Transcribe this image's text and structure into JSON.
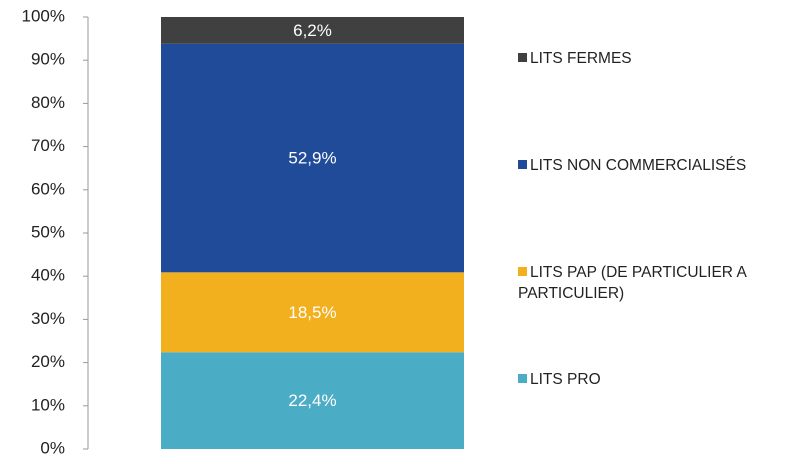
{
  "chart_data": {
    "type": "stacked_bar",
    "categories": [
      null
    ],
    "series": [
      {
        "name": "LITS PRO",
        "color": "#4bacc6",
        "values": [
          22.4
        ],
        "value_labels": [
          "22,4%"
        ]
      },
      {
        "name": "LITS PAP (DE PARTICULIER A PARTICULIER)",
        "color": "#f2b01e",
        "values": [
          18.5
        ],
        "value_labels": [
          "18,5%"
        ]
      },
      {
        "name": "LITS NON COMMERCIALISÉS",
        "color": "#1f4b99",
        "values": [
          52.9
        ],
        "value_labels": [
          "52,9%"
        ]
      },
      {
        "name": "LITS FERMES",
        "color": "#404040",
        "values": [
          6.2
        ],
        "value_labels": [
          "6,2%"
        ]
      }
    ],
    "ylim": [
      0,
      100
    ],
    "yticks": [
      {
        "value": 0,
        "label": "0%"
      },
      {
        "value": 10,
        "label": "10%"
      },
      {
        "value": 20,
        "label": "20%"
      },
      {
        "value": 30,
        "label": "30%"
      },
      {
        "value": 40,
        "label": "40%"
      },
      {
        "value": 50,
        "label": "50%"
      },
      {
        "value": 60,
        "label": "60%"
      },
      {
        "value": 70,
        "label": "70%"
      },
      {
        "value": 80,
        "label": "80%"
      },
      {
        "value": 90,
        "label": "90%"
      },
      {
        "value": 100,
        "label": "100%"
      }
    ],
    "legend": "right"
  }
}
